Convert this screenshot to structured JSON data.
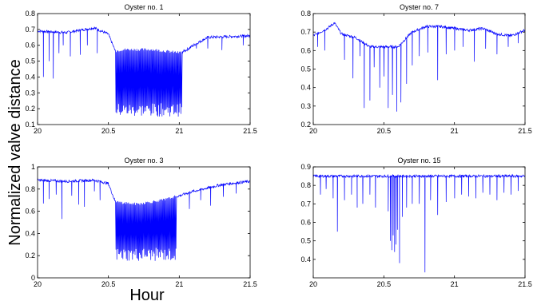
{
  "figure": {
    "ylabel": "Normalized valve distance",
    "xlabel": "Hour"
  },
  "chart_data": [
    {
      "type": "line",
      "title": "Oyster no. 1",
      "xlim": [
        20,
        21.5
      ],
      "ylim": [
        0.1,
        0.8
      ],
      "xticks": [
        "20",
        "20.5",
        "21",
        "21.5"
      ],
      "yticks": [
        "0.1",
        "0.2",
        "0.3",
        "0.4",
        "0.5",
        "0.6",
        "0.7",
        "0.8"
      ],
      "series": [
        {
          "color": "#0000ff",
          "baseline": [
            [
              20.0,
              0.69
            ],
            [
              20.2,
              0.68
            ],
            [
              20.4,
              0.71
            ],
            [
              20.5,
              0.67
            ],
            [
              20.55,
              0.56
            ],
            [
              20.6,
              0.57
            ],
            [
              20.7,
              0.57
            ],
            [
              20.8,
              0.57
            ],
            [
              20.9,
              0.56
            ],
            [
              21.0,
              0.55
            ],
            [
              21.05,
              0.57
            ],
            [
              21.1,
              0.6
            ],
            [
              21.2,
              0.65
            ],
            [
              21.5,
              0.66
            ]
          ],
          "dips": [
            {
              "x": 20.04,
              "y": 0.4
            },
            {
              "x": 20.08,
              "y": 0.5
            },
            {
              "x": 20.11,
              "y": 0.39
            },
            {
              "x": 20.15,
              "y": 0.55
            },
            {
              "x": 20.18,
              "y": 0.6
            },
            {
              "x": 20.23,
              "y": 0.53
            },
            {
              "x": 20.3,
              "y": 0.54
            },
            {
              "x": 20.35,
              "y": 0.6
            },
            {
              "x": 20.42,
              "y": 0.55
            },
            {
              "x": 21.12,
              "y": 0.58
            },
            {
              "x": 21.2,
              "y": 0.58
            },
            {
              "x": 21.3,
              "y": 0.57
            },
            {
              "x": 21.45,
              "y": 0.6
            }
          ],
          "oscillation": {
            "from": 20.55,
            "to": 21.02,
            "min": 0.15,
            "count": 78
          }
        }
      ]
    },
    {
      "type": "line",
      "title": "Oyster no. 7",
      "xlim": [
        20,
        21.5
      ],
      "ylim": [
        0.2,
        0.8
      ],
      "xticks": [
        "20",
        "20.5",
        "21",
        "21.5"
      ],
      "yticks": [
        "0.2",
        "0.3",
        "0.4",
        "0.5",
        "0.6",
        "0.7",
        "0.8"
      ],
      "series": [
        {
          "color": "#0000ff",
          "baseline": [
            [
              20.0,
              0.68
            ],
            [
              20.1,
              0.72
            ],
            [
              20.15,
              0.75
            ],
            [
              20.2,
              0.69
            ],
            [
              20.3,
              0.67
            ],
            [
              20.4,
              0.62
            ],
            [
              20.5,
              0.62
            ],
            [
              20.6,
              0.62
            ],
            [
              20.7,
              0.7
            ],
            [
              20.8,
              0.73
            ],
            [
              20.9,
              0.73
            ],
            [
              21.0,
              0.72
            ],
            [
              21.1,
              0.71
            ],
            [
              21.2,
              0.72
            ],
            [
              21.3,
              0.69
            ],
            [
              21.4,
              0.68
            ],
            [
              21.5,
              0.71
            ]
          ],
          "dips": [
            {
              "x": 20.03,
              "y": 0.62
            },
            {
              "x": 20.08,
              "y": 0.6
            },
            {
              "x": 20.22,
              "y": 0.55
            },
            {
              "x": 20.28,
              "y": 0.45
            },
            {
              "x": 20.33,
              "y": 0.57
            },
            {
              "x": 20.36,
              "y": 0.29
            },
            {
              "x": 20.4,
              "y": 0.33
            },
            {
              "x": 20.43,
              "y": 0.51
            },
            {
              "x": 20.47,
              "y": 0.4
            },
            {
              "x": 20.5,
              "y": 0.46
            },
            {
              "x": 20.53,
              "y": 0.29
            },
            {
              "x": 20.56,
              "y": 0.36
            },
            {
              "x": 20.59,
              "y": 0.27
            },
            {
              "x": 20.62,
              "y": 0.32
            },
            {
              "x": 20.66,
              "y": 0.42
            },
            {
              "x": 20.7,
              "y": 0.52
            },
            {
              "x": 20.75,
              "y": 0.57
            },
            {
              "x": 20.81,
              "y": 0.59
            },
            {
              "x": 20.88,
              "y": 0.44
            },
            {
              "x": 20.94,
              "y": 0.58
            },
            {
              "x": 21.0,
              "y": 0.6
            },
            {
              "x": 21.06,
              "y": 0.62
            },
            {
              "x": 21.14,
              "y": 0.54
            },
            {
              "x": 21.22,
              "y": 0.61
            },
            {
              "x": 21.3,
              "y": 0.58
            },
            {
              "x": 21.38,
              "y": 0.62
            },
            {
              "x": 21.45,
              "y": 0.64
            }
          ],
          "oscillation": null
        }
      ]
    },
    {
      "type": "line",
      "title": "Oyster no. 3",
      "xlim": [
        20,
        21.5
      ],
      "ylim": [
        0,
        1
      ],
      "xticks": [
        "20",
        "20.5",
        "21",
        "21.5"
      ],
      "yticks": [
        "0",
        "0.2",
        "0.4",
        "0.6",
        "0.8",
        "1"
      ],
      "series": [
        {
          "color": "#0000ff",
          "baseline": [
            [
              20.0,
              0.88
            ],
            [
              20.2,
              0.87
            ],
            [
              20.4,
              0.88
            ],
            [
              20.5,
              0.85
            ],
            [
              20.55,
              0.68
            ],
            [
              20.7,
              0.66
            ],
            [
              20.9,
              0.7
            ],
            [
              21.0,
              0.74
            ],
            [
              21.1,
              0.78
            ],
            [
              21.3,
              0.84
            ],
            [
              21.5,
              0.87
            ]
          ],
          "dips": [
            {
              "x": 20.04,
              "y": 0.67
            },
            {
              "x": 20.08,
              "y": 0.71
            },
            {
              "x": 20.13,
              "y": 0.75
            },
            {
              "x": 20.17,
              "y": 0.53
            },
            {
              "x": 20.24,
              "y": 0.74
            },
            {
              "x": 20.29,
              "y": 0.66
            },
            {
              "x": 20.33,
              "y": 0.64
            },
            {
              "x": 20.4,
              "y": 0.78
            },
            {
              "x": 20.44,
              "y": 0.7
            },
            {
              "x": 21.07,
              "y": 0.62
            },
            {
              "x": 21.15,
              "y": 0.7
            },
            {
              "x": 21.22,
              "y": 0.65
            },
            {
              "x": 21.31,
              "y": 0.73
            },
            {
              "x": 21.4,
              "y": 0.76
            }
          ],
          "oscillation": {
            "from": 20.55,
            "to": 20.98,
            "min": 0.15,
            "count": 70
          }
        }
      ]
    },
    {
      "type": "line",
      "title": "Oyster no. 15",
      "xlim": [
        20,
        21.5
      ],
      "ylim": [
        0.3,
        0.9
      ],
      "xticks": [
        "20",
        "20.5",
        "21",
        "21.5"
      ],
      "yticks": [
        "0.4",
        "0.5",
        "0.6",
        "0.7",
        "0.8",
        "0.9"
      ],
      "series": [
        {
          "color": "#0000ff",
          "baseline": [
            [
              20.0,
              0.85
            ],
            [
              20.5,
              0.85
            ],
            [
              21.0,
              0.85
            ],
            [
              21.5,
              0.85
            ]
          ],
          "dips": [
            {
              "x": 20.05,
              "y": 0.75
            },
            {
              "x": 20.09,
              "y": 0.78
            },
            {
              "x": 20.14,
              "y": 0.73
            },
            {
              "x": 20.17,
              "y": 0.55
            },
            {
              "x": 20.22,
              "y": 0.72
            },
            {
              "x": 20.27,
              "y": 0.75
            },
            {
              "x": 20.31,
              "y": 0.68
            },
            {
              "x": 20.35,
              "y": 0.7
            },
            {
              "x": 20.4,
              "y": 0.75
            },
            {
              "x": 20.44,
              "y": 0.68
            },
            {
              "x": 20.53,
              "y": 0.66
            },
            {
              "x": 20.545,
              "y": 0.5
            },
            {
              "x": 20.555,
              "y": 0.45
            },
            {
              "x": 20.565,
              "y": 0.53
            },
            {
              "x": 20.575,
              "y": 0.44
            },
            {
              "x": 20.585,
              "y": 0.48
            },
            {
              "x": 20.595,
              "y": 0.56
            },
            {
              "x": 20.61,
              "y": 0.38
            },
            {
              "x": 20.63,
              "y": 0.63
            },
            {
              "x": 20.66,
              "y": 0.68
            },
            {
              "x": 20.7,
              "y": 0.7
            },
            {
              "x": 20.75,
              "y": 0.7
            },
            {
              "x": 20.79,
              "y": 0.33
            },
            {
              "x": 20.83,
              "y": 0.72
            },
            {
              "x": 20.88,
              "y": 0.64
            },
            {
              "x": 20.94,
              "y": 0.71
            },
            {
              "x": 21.0,
              "y": 0.73
            },
            {
              "x": 21.05,
              "y": 0.75
            },
            {
              "x": 21.1,
              "y": 0.74
            },
            {
              "x": 21.15,
              "y": 0.73
            },
            {
              "x": 21.2,
              "y": 0.76
            },
            {
              "x": 21.25,
              "y": 0.75
            },
            {
              "x": 21.3,
              "y": 0.72
            },
            {
              "x": 21.35,
              "y": 0.76
            },
            {
              "x": 21.4,
              "y": 0.75
            },
            {
              "x": 21.45,
              "y": 0.77
            }
          ],
          "oscillation": null
        }
      ]
    }
  ]
}
